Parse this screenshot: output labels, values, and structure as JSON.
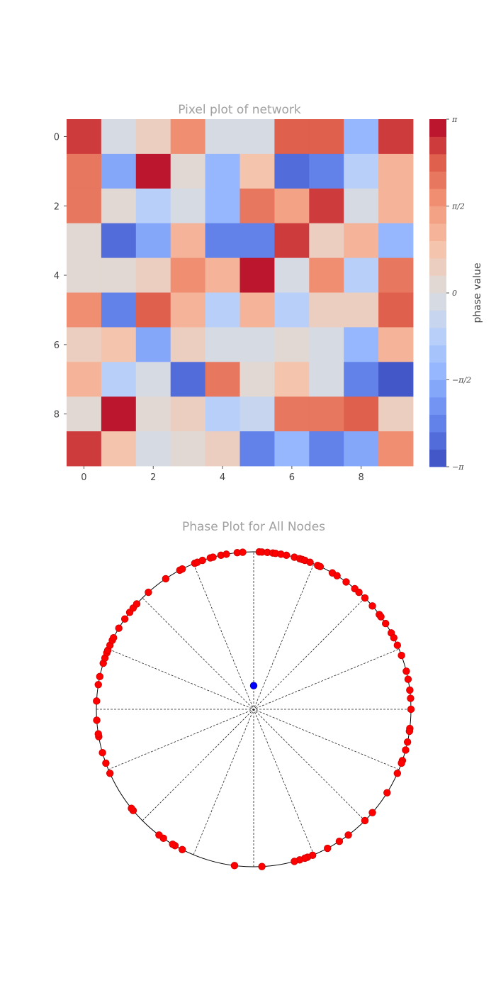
{
  "chart_data": [
    {
      "type": "heatmap",
      "title": "Pixel plot of network",
      "colormap": "coolwarm",
      "vmin": -3.1416,
      "vmax": 3.1416,
      "x_ticks": [
        "0",
        "2",
        "4",
        "6",
        "8"
      ],
      "y_ticks": [
        "0",
        "2",
        "4",
        "6",
        "8"
      ],
      "colorbar": {
        "label": "phase value",
        "tick_labels": [
          "−π",
          "−π/2",
          "0",
          "π/2",
          "π"
        ],
        "tick_values": [
          -3.1416,
          -1.5708,
          0,
          1.5708,
          3.1416
        ],
        "levels": 20
      },
      "values": [
        [
          2.6,
          -0.3,
          0.6,
          1.7,
          -0.3,
          -0.3,
          2.5,
          2.5,
          -1.4,
          2.6
        ],
        [
          1.9,
          -1.6,
          3.0,
          0.2,
          -1.5,
          0.7,
          -2.8,
          -2.3,
          -0.9,
          1.1
        ],
        [
          1.9,
          0.2,
          -0.9,
          -0.3,
          -1.5,
          2.0,
          1.5,
          2.6,
          -0.3,
          1.1
        ],
        [
          0.2,
          -2.8,
          -1.7,
          1.1,
          -2.3,
          -2.4,
          2.6,
          0.6,
          1.0,
          -1.3
        ],
        [
          0.2,
          0.2,
          0.6,
          1.6,
          1.0,
          3.0,
          -0.3,
          1.8,
          -0.9,
          2.0
        ],
        [
          1.6,
          -2.4,
          2.5,
          1.0,
          -0.9,
          1.0,
          -0.9,
          0.6,
          0.6,
          2.5
        ],
        [
          0.6,
          0.9,
          -1.6,
          0.6,
          -0.3,
          -0.3,
          0.2,
          -0.3,
          -1.5,
          1.1
        ],
        [
          1.1,
          -0.9,
          -0.3,
          -2.7,
          1.9,
          0.2,
          0.9,
          -0.3,
          -2.3,
          -2.9
        ],
        [
          0.0,
          2.9,
          0.2,
          0.6,
          -0.9,
          -0.6,
          2.0,
          2.0,
          2.2,
          0.5
        ],
        [
          2.6,
          0.8,
          -0.3,
          0.0,
          0.6,
          -2.3,
          -1.5,
          -2.4,
          -1.6,
          1.6
        ]
      ]
    },
    {
      "type": "scatter",
      "title": "Phase Plot for All Nodes",
      "projection": "polar",
      "radius": 1,
      "spokes": 16,
      "node_color": "#ff0000",
      "mean_color": "#0000ff",
      "mean_vector": {
        "angle_deg": 90,
        "r": 0.15
      },
      "node_angles_deg": [
        88,
        87,
        85,
        83,
        82,
        80,
        78,
        75,
        73,
        72,
        71,
        69,
        66,
        65,
        60,
        58,
        54,
        50,
        48,
        45,
        41,
        37,
        36,
        33,
        29,
        27,
        24,
        20,
        14,
        11,
        7,
        4,
        0,
        -7,
        -8,
        -12,
        -15,
        -19,
        -20,
        -24,
        -32,
        -41,
        -45,
        -53,
        -57,
        -62,
        -68,
        -70,
        -71,
        -73,
        -75,
        -87,
        -97,
        -117,
        -120,
        -121,
        -125,
        -127,
        -140,
        -141,
        -156,
        -160,
        -164,
        -170,
        -171,
        -176,
        -183,
        -189,
        -192,
        -197,
        -199,
        -201,
        -202,
        -204,
        -206,
        -207,
        -211,
        -215,
        -218,
        -220,
        -222,
        -228,
        -236,
        -242,
        -243,
        -248,
        -249,
        -251,
        -254,
        -255,
        -258,
        -260,
        -264,
        -266
      ]
    }
  ]
}
